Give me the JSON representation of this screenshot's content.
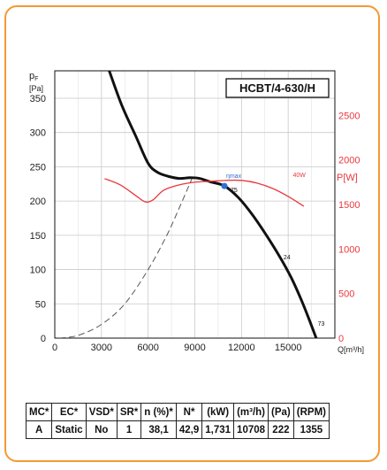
{
  "chart_data": {
    "type": "line",
    "model_label": "HCBT/4-630/H",
    "y_left_label": {
      "main": "p",
      "sub": "F",
      "unit": "[Pa]"
    },
    "y_right_label": "P[W]",
    "x_label": "Q[m³/h]",
    "x_ticks": [
      "0",
      "3000",
      "6000",
      "9000",
      "12000",
      "15000"
    ],
    "y_left_ticks": [
      "0",
      "50",
      "100",
      "150",
      "200",
      "250",
      "300",
      "350"
    ],
    "y_right_ticks": [
      "0",
      "500",
      "1000",
      "1500",
      "2000",
      "2500"
    ],
    "xlim": [
      0,
      18000
    ],
    "ylim": [
      0,
      390
    ],
    "y2lim": [
      0,
      3000
    ],
    "grid": true,
    "colors": {
      "pressure": "#111111",
      "power": "#e8383d",
      "system": "#555555",
      "optimum": "#2f6fd0",
      "frame": "#f29a33"
    },
    "series": [
      {
        "role": "pressure",
        "axis": "left",
        "x": [
          3500,
          4300,
          5200,
          6000,
          6600,
          7300,
          8000,
          8700,
          9300,
          10000,
          10900,
          11800,
          12700,
          13600,
          14500,
          15200,
          15800,
          16300,
          16800
        ],
        "y": [
          390,
          340,
          295,
          255,
          242,
          236,
          233,
          234,
          233,
          228,
          222,
          205,
          180,
          150,
          117,
          88,
          58,
          30,
          0
        ]
      },
      {
        "role": "power",
        "axis": "right",
        "x": [
          3200,
          4200,
          5200,
          5800,
          6300,
          7000,
          8000,
          9000,
          10000,
          11000,
          12000,
          13000,
          14000,
          15000,
          16000
        ],
        "y": [
          1790,
          1720,
          1600,
          1530,
          1550,
          1660,
          1720,
          1750,
          1760,
          1770,
          1770,
          1740,
          1680,
          1590,
          1480
        ]
      },
      {
        "role": "system",
        "axis": "left",
        "x": [
          300,
          1500,
          3000,
          4500,
          6000,
          7200,
          8000,
          8800
        ],
        "y": [
          0,
          4,
          20,
          50,
          100,
          150,
          190,
          232
        ]
      }
    ],
    "optimum": {
      "x": 10900,
      "y": 222,
      "label": "ηmax"
    },
    "point_labels": [
      {
        "text": "75",
        "x": 11300,
        "y": 213
      },
      {
        "text": "24",
        "x": 14700,
        "y": 115
      },
      {
        "text": "73",
        "x": 16900,
        "y": 18
      },
      {
        "text": "40W",
        "x": 15300,
        "y": 1810,
        "axis": "right"
      }
    ]
  },
  "table": {
    "headers": [
      "MC*",
      "EC*",
      "VSD*",
      "SR*",
      "n (%)*",
      "N*",
      "(kW)",
      "(m³/h)",
      "(Pa)",
      "(RPM)"
    ],
    "row": [
      "A",
      "Static",
      "No",
      "1",
      "38,1",
      "42,9",
      "1,731",
      "10708",
      "222",
      "1355"
    ]
  }
}
